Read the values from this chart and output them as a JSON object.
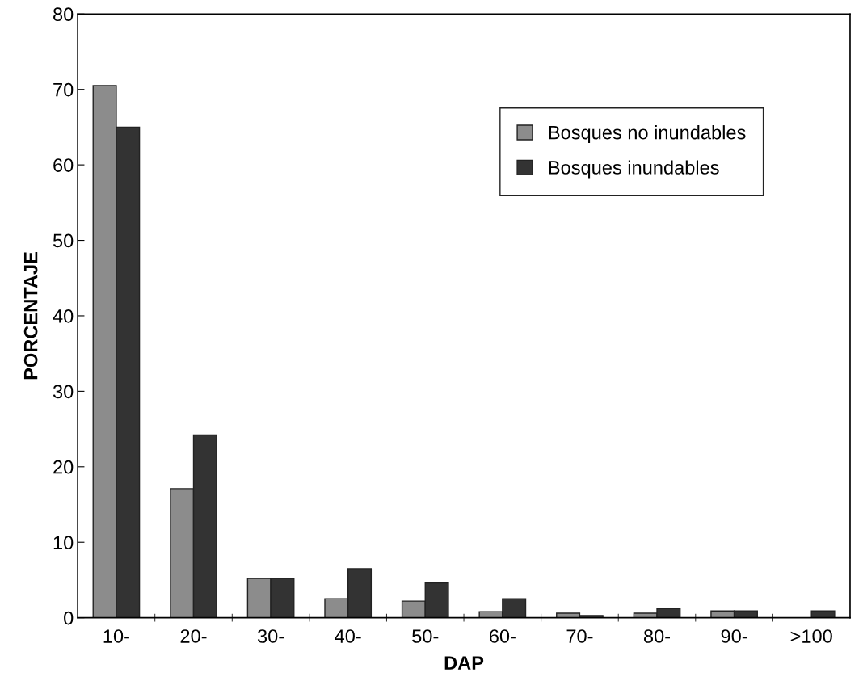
{
  "chart_data": {
    "type": "bar",
    "xlabel": "DAP",
    "ylabel": "PORCENTAJE",
    "categories": [
      "10-",
      "20-",
      "30-",
      "40-",
      "50-",
      "60-",
      "70-",
      "80-",
      "90-",
      ">100"
    ],
    "series": [
      {
        "name": "Bosques no inundables",
        "color": "#8c8c8c",
        "values": [
          70.5,
          17.1,
          5.2,
          2.5,
          2.2,
          0.8,
          0.6,
          0.6,
          0.9,
          null
        ]
      },
      {
        "name": "Bosques inundables",
        "color": "#333333",
        "values": [
          65,
          24.2,
          5.2,
          6.5,
          4.6,
          2.5,
          0.3,
          1.2,
          0.9,
          0.9
        ]
      }
    ],
    "ylim": [
      0,
      80
    ],
    "yticks": [
      0,
      10,
      20,
      30,
      40,
      50,
      60,
      70,
      80
    ],
    "grid": false,
    "legend": "top right"
  }
}
